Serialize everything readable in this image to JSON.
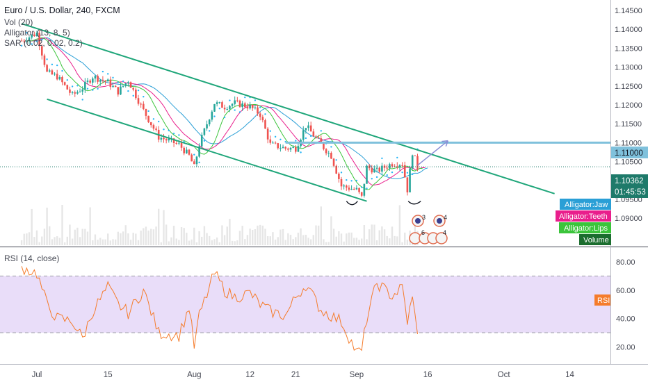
{
  "header": {
    "symbol": "Euro / U.S. Dollar, 240, FXCM",
    "studies": [
      "Vol (20)",
      "Alligator (13, 8, 5)",
      "SAR (0.02, 0.02, 0.2)"
    ]
  },
  "price_axis": {
    "ticks": [
      "1.14500",
      "1.14000",
      "1.13500",
      "1.13000",
      "1.12500",
      "1.12000",
      "1.11500",
      "1.11000",
      "1.10500",
      "1.10000",
      "1.09500",
      "1.09000"
    ],
    "current_price": "1.10362",
    "countdown": "01:45:53",
    "level_label": "1.11000"
  },
  "legend_tags": [
    {
      "label": "Alligator:Jaw",
      "color": "#2a9fd6"
    },
    {
      "label": "Alligator:Teeth",
      "color": "#e91e8c"
    },
    {
      "label": "Alligator:Lips",
      "color": "#3bc43b"
    },
    {
      "label": "Volume",
      "color": "#1b6d2e"
    }
  ],
  "rsi": {
    "title": "RSI (14, close)",
    "tag": "RSI",
    "ticks": [
      "80.00",
      "60.00",
      "40.00",
      "20.00"
    ]
  },
  "time_axis": [
    "Jul",
    "15",
    "Aug",
    "12",
    "21",
    "Sep",
    "16",
    "Oct",
    "14"
  ],
  "event_badges": [
    "3",
    "4",
    "6",
    "4"
  ],
  "colors": {
    "up_candle": "#26a69a",
    "down_candle": "#ef5350",
    "channel": "#1fa67a",
    "level_line": "#7fc1dc",
    "jaw": "#2a9fd6",
    "teeth": "#e91e8c",
    "lips": "#3bc43b",
    "sar": "#29b6f6",
    "rsi_line": "#f57c2c",
    "rsi_band": "#e9ddf9",
    "price_tag": "#1e7a6a"
  },
  "chart_data": [
    {
      "type": "candlestick",
      "title": "Euro / U.S. Dollar, 240, FXCM",
      "ylim": [
        1.0875,
        1.147
      ],
      "x_ticks": [
        "Jul",
        "15",
        "Aug",
        "12",
        "21",
        "Sep",
        "16",
        "Oct",
        "14"
      ],
      "close_path": [
        {
          "x": "Jun 28",
          "y": 1.137
        },
        {
          "x": "Jul 1",
          "y": 1.139
        },
        {
          "x": "Jul 3",
          "y": 1.1285
        },
        {
          "x": "Jul 5",
          "y": 1.1275
        },
        {
          "x": "Jul 8",
          "y": 1.1225
        },
        {
          "x": "Jul 10",
          "y": 1.1245
        },
        {
          "x": "Jul 12",
          "y": 1.1275
        },
        {
          "x": "Jul 15",
          "y": 1.126
        },
        {
          "x": "Jul 17",
          "y": 1.1235
        },
        {
          "x": "Jul 19",
          "y": 1.1265
        },
        {
          "x": "Jul 22",
          "y": 1.1185
        },
        {
          "x": "Jul 25",
          "y": 1.1115
        },
        {
          "x": "Jul 29",
          "y": 1.1095
        },
        {
          "x": "Jul 31",
          "y": 1.1065
        },
        {
          "x": "Aug 1",
          "y": 1.1035
        },
        {
          "x": "Aug 2",
          "y": 1.1095
        },
        {
          "x": "Aug 5",
          "y": 1.1205
        },
        {
          "x": "Aug 7",
          "y": 1.1195
        },
        {
          "x": "Aug 9",
          "y": 1.1205
        },
        {
          "x": "Aug 12",
          "y": 1.1195
        },
        {
          "x": "Aug 14",
          "y": 1.1175
        },
        {
          "x": "Aug 16",
          "y": 1.1095
        },
        {
          "x": "Aug 19",
          "y": 1.1085
        },
        {
          "x": "Aug 21",
          "y": 1.1085
        },
        {
          "x": "Aug 23",
          "y": 1.1145
        },
        {
          "x": "Aug 26",
          "y": 1.1095
        },
        {
          "x": "Aug 28",
          "y": 1.1065
        },
        {
          "x": "Aug 30",
          "y": 1.0985
        },
        {
          "x": "Sep 2",
          "y": 1.0975
        },
        {
          "x": "Sep 3",
          "y": 1.0955
        },
        {
          "x": "Sep 4",
          "y": 1.1035
        },
        {
          "x": "Sep 6",
          "y": 1.1025
        },
        {
          "x": "Sep 9",
          "y": 1.1045
        },
        {
          "x": "Sep 11",
          "y": 1.1045
        },
        {
          "x": "Sep 12",
          "y": 1.0975
        },
        {
          "x": "Sep 13",
          "y": 1.1075
        },
        {
          "x": "Sep 14",
          "y": 1.1036
        }
      ],
      "annotations": [
        {
          "type": "descending_channel_upper",
          "from": {
            "x": "Jun 28",
            "y": 1.1415
          },
          "to": {
            "x": "Oct 11",
            "y": 1.0965
          }
        },
        {
          "type": "descending_channel_lower",
          "from": {
            "x": "Jul 3",
            "y": 1.1215
          },
          "to": {
            "x": "Sep 4",
            "y": 1.0945
          }
        },
        {
          "type": "horizontal_level",
          "y": 1.11,
          "label": "1.11000"
        },
        {
          "type": "projection_arrow",
          "from": {
            "x": "Sep 14",
            "y": 1.104
          },
          "to": {
            "x": "Sep 20",
            "y": 1.1105
          }
        }
      ]
    },
    {
      "type": "line",
      "title": "RSI (14, close)",
      "ylim": [
        10,
        85
      ],
      "band": [
        30,
        70
      ],
      "x": [
        "Jun 28",
        "Jul 1",
        "Jul 3",
        "Jul 5",
        "Jul 8",
        "Jul 10",
        "Jul 12",
        "Jul 15",
        "Jul 17",
        "Jul 19",
        "Jul 22",
        "Jul 25",
        "Jul 29",
        "Jul 31",
        "Aug 1",
        "Aug 2",
        "Aug 5",
        "Aug 7",
        "Aug 9",
        "Aug 12",
        "Aug 14",
        "Aug 16",
        "Aug 19",
        "Aug 21",
        "Aug 23",
        "Aug 26",
        "Aug 28",
        "Aug 30",
        "Sep 2",
        "Sep 3",
        "Sep 4",
        "Sep 6",
        "Sep 9",
        "Sep 11",
        "Sep 12",
        "Sep 13",
        "Sep 14"
      ],
      "values": [
        76,
        72,
        50,
        40,
        38,
        26,
        45,
        62,
        50,
        44,
        60,
        30,
        28,
        48,
        20,
        42,
        72,
        60,
        55,
        58,
        50,
        45,
        42,
        55,
        64,
        46,
        42,
        38,
        16,
        17,
        40,
        65,
        56,
        62,
        38,
        54,
        29
      ],
      "series": [
        {
          "name": "RSI",
          "values": "see values"
        }
      ]
    }
  ]
}
